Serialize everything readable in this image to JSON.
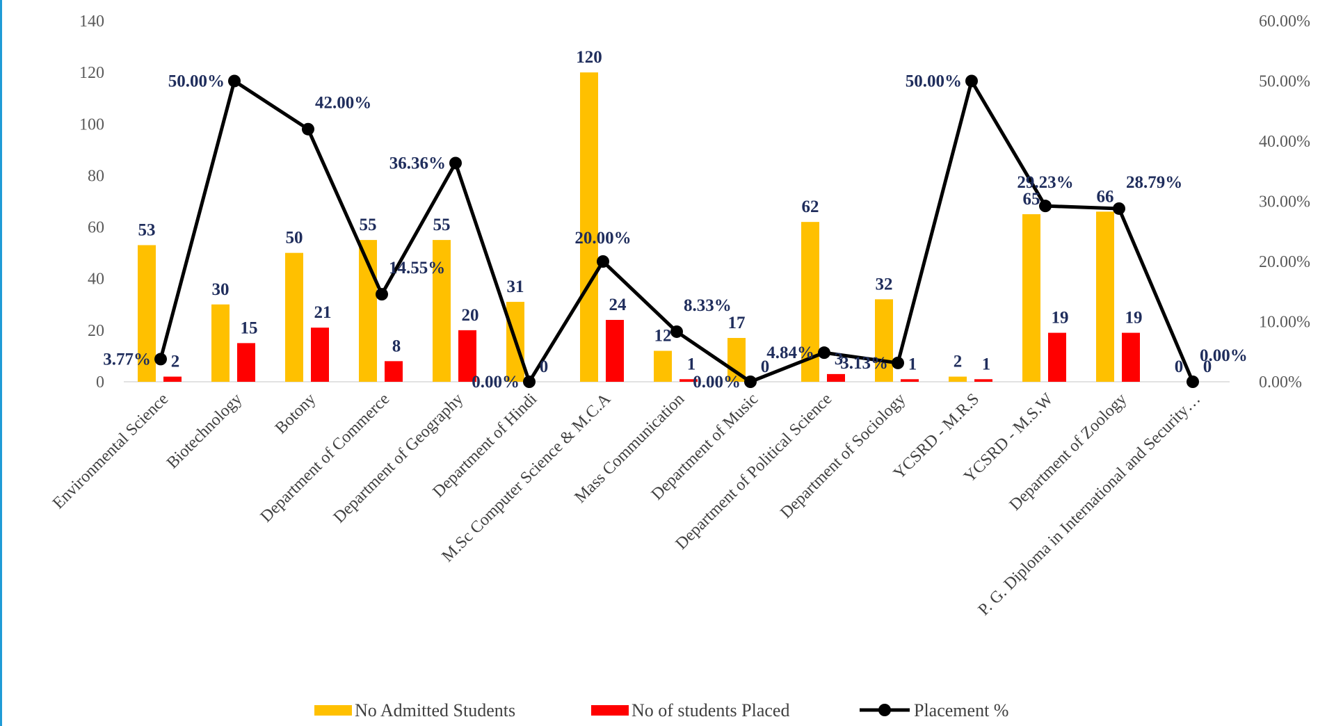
{
  "colors": {
    "admitted": "#ffc000",
    "placed": "#ff0000",
    "line": "#000000",
    "label": "#1f2d5c",
    "axis_text": "#595959",
    "gridline": "#d9d9d9",
    "frame": "#1f9bd6"
  },
  "chart_data": {
    "type": "bar",
    "categories": [
      "Environmental Science",
      "Biotechnology",
      "Botony",
      "Department of Commerce",
      "Department of Geography",
      "Department of Hindi",
      "M.Sc Computer Science & M.C.A",
      "Mass Communication",
      "Department of Music",
      "Department of Political Science",
      "Department of Sociology",
      "YCSRD - M.R.S",
      "YCSRD - M.S.W",
      "Department of Zoology",
      "P. G. Diploma in International and Security…"
    ],
    "series": [
      {
        "name": "No Admitted Students",
        "type": "bar",
        "axis": "left",
        "values": [
          53,
          30,
          50,
          55,
          55,
          31,
          120,
          12,
          17,
          62,
          32,
          2,
          65,
          66,
          0
        ]
      },
      {
        "name": "No of  students  Placed",
        "type": "bar",
        "axis": "left",
        "values": [
          2,
          15,
          21,
          8,
          20,
          0,
          24,
          1,
          0,
          3,
          1,
          1,
          19,
          19,
          0
        ]
      },
      {
        "name": "Placement %",
        "type": "line",
        "axis": "right",
        "values": [
          3.77,
          50.0,
          42.0,
          14.55,
          36.36,
          0.0,
          20.0,
          8.33,
          0.0,
          4.84,
          3.13,
          50.0,
          29.23,
          28.79,
          0.0
        ],
        "labels": [
          "3.77%",
          "50.00%",
          "42.00%",
          "14.55%",
          "36.36%",
          "0.00%",
          "20.00%",
          "8.33%",
          "0.00%",
          "4.84%",
          "3.13%",
          "50.00%",
          "29.23%",
          "28.79%",
          "0.00%"
        ]
      }
    ],
    "ylim": [
      0,
      140
    ],
    "yticks": [
      "0",
      "20",
      "40",
      "60",
      "80",
      "100",
      "120",
      "140"
    ],
    "y2lim": [
      0,
      60
    ],
    "y2ticks": [
      "0.00%",
      "10.00%",
      "20.00%",
      "30.00%",
      "40.00%",
      "50.00%",
      "60.00%"
    ],
    "legend_position": "bottom",
    "grid": false
  }
}
